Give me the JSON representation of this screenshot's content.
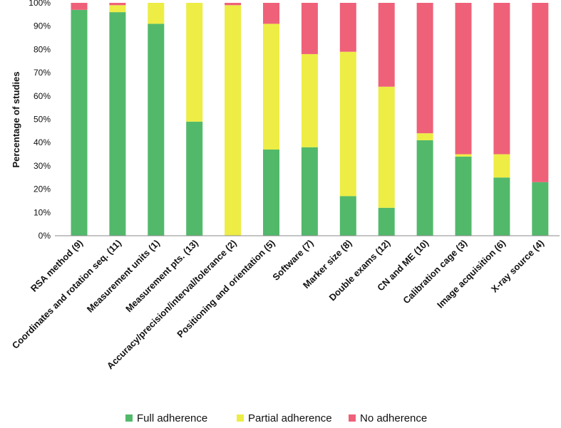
{
  "chart_data": {
    "type": "bar",
    "stacked": true,
    "categories": [
      "RSA method (9)",
      "Coordinates and rotation seq. (11)",
      "Measurement units (1)",
      "Measurement pts. (13)",
      "Accuracy/precision/interval/tolerance (2)",
      "Positioning and orientation (5)",
      "Software (7)",
      "Marker size (8)",
      "Double exams (12)",
      "CN and ME (10)",
      "Calibration cage (3)",
      "Image acquisition (6)",
      "X-ray source (4)"
    ],
    "series": [
      {
        "name": "Full adherence",
        "color": "#52b96b",
        "values": [
          97,
          96,
          91,
          49,
          0,
          37,
          38,
          17,
          12,
          41,
          34,
          25,
          23
        ]
      },
      {
        "name": "Partial adherence",
        "color": "#eded45",
        "values": [
          0,
          3,
          9,
          51,
          99,
          54,
          40,
          62,
          52,
          3,
          1,
          10,
          0
        ]
      },
      {
        "name": "No adherence",
        "color": "#ef6179",
        "values": [
          3,
          1,
          0,
          0,
          1,
          9,
          22,
          21,
          36,
          56,
          65,
          65,
          77
        ]
      }
    ],
    "ylabel": "Percentage of studies",
    "xlabel": "",
    "ylim": [
      0,
      100
    ],
    "yticks": [
      "0%",
      "10%",
      "20%",
      "30%",
      "40%",
      "50%",
      "60%",
      "70%",
      "80%",
      "90%",
      "100%"
    ],
    "grid": false,
    "legend": "bottom"
  }
}
